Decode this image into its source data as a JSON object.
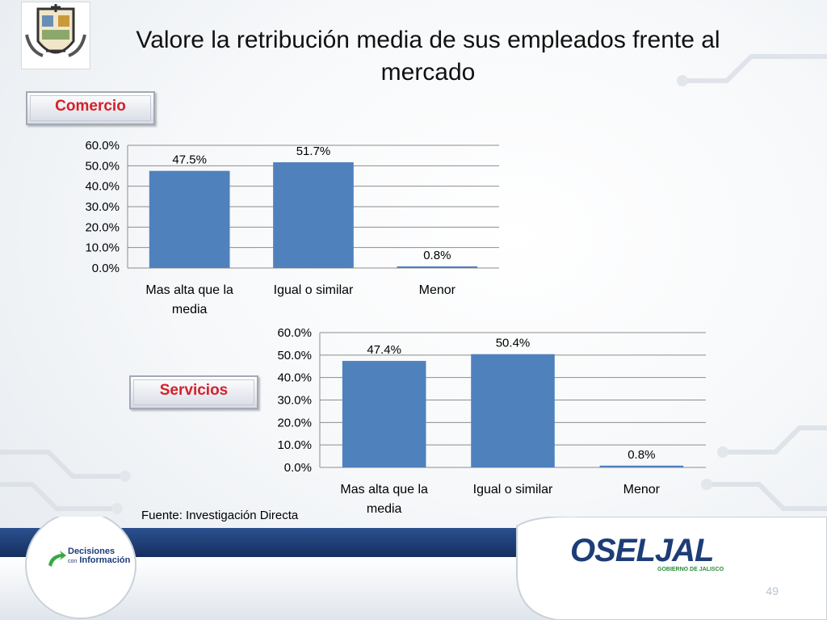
{
  "slide": {
    "title": "Valore la retribución media de sus empleados frente al mercado",
    "source": "Fuente: Investigación Directa",
    "page_number": "49",
    "logo_left_text": [
      "Decisiones",
      "con",
      "Información"
    ],
    "logo_right_text": [
      "OSELJAL",
      "GOBIERNO DE JALISCO"
    ]
  },
  "colors": {
    "bar": "#4f81bd",
    "tag_text": "#d4202a",
    "footer_blue": "#1d3d78"
  },
  "chart_data": [
    {
      "type": "bar",
      "section_label": "Comercio",
      "categories": [
        "Mas alta que la media",
        "Igual o similar",
        "Menor"
      ],
      "category_lines": [
        [
          "Mas alta que la",
          "media"
        ],
        [
          "Igual o similar"
        ],
        [
          "Menor"
        ]
      ],
      "values": [
        47.5,
        51.7,
        0.8
      ],
      "value_labels": [
        "47.5%",
        "51.7%",
        "0.8%"
      ],
      "ylim": [
        0,
        60
      ],
      "yticks": [
        "0.0%",
        "10.0%",
        "20.0%",
        "30.0%",
        "40.0%",
        "50.0%",
        "60.0%"
      ],
      "grid": true,
      "title": "",
      "xlabel": "",
      "ylabel": ""
    },
    {
      "type": "bar",
      "section_label": "Servicios",
      "categories": [
        "Mas alta que la media",
        "Igual o similar",
        "Menor"
      ],
      "category_lines": [
        [
          "Mas alta que la",
          "media"
        ],
        [
          "Igual o similar"
        ],
        [
          "Menor"
        ]
      ],
      "values": [
        47.4,
        50.4,
        0.8
      ],
      "value_labels": [
        "47.4%",
        "50.4%",
        "0.8%"
      ],
      "ylim": [
        0,
        60
      ],
      "yticks": [
        "0.0%",
        "10.0%",
        "20.0%",
        "30.0%",
        "40.0%",
        "50.0%",
        "60.0%"
      ],
      "grid": true,
      "title": "",
      "xlabel": "",
      "ylabel": ""
    }
  ]
}
